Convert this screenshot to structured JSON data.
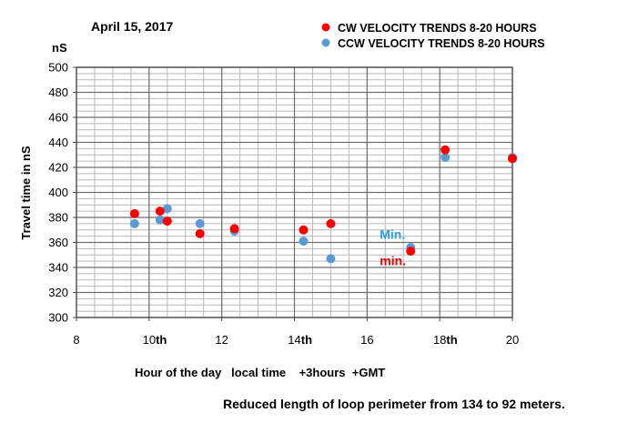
{
  "chart_data": {
    "type": "scatter",
    "date_label": "April 15, 2017",
    "y_unit": "nS",
    "ylabel": "Travel time in nS",
    "xlabel": "Hour of the day   local time    +3hours  +GMT",
    "footnote": "Reduced length of loop perimeter from 134 to 92 meters.",
    "xlim": [
      8,
      20
    ],
    "ylim": [
      300,
      500
    ],
    "x_ticks": [
      8,
      10,
      12,
      14,
      16,
      18,
      20
    ],
    "x_tick_labels": [
      "8",
      "10th",
      "12",
      "14th",
      "16",
      "18th",
      "20"
    ],
    "y_ticks": [
      300,
      320,
      340,
      360,
      380,
      400,
      420,
      440,
      460,
      480,
      500
    ],
    "y_tick_labels": [
      "300",
      "320",
      "340",
      "360",
      "380",
      "400",
      "420",
      "440",
      "460",
      "480",
      "500"
    ],
    "grid": true,
    "legend_position": "top-right",
    "series": [
      {
        "name": "CW VELOCITY TRENDS 8-20 HOURS",
        "color": "#ff0000",
        "points": [
          {
            "x": 9.6,
            "y": 383
          },
          {
            "x": 10.3,
            "y": 385
          },
          {
            "x": 10.5,
            "y": 377
          },
          {
            "x": 11.4,
            "y": 367
          },
          {
            "x": 12.35,
            "y": 371
          },
          {
            "x": 14.25,
            "y": 370
          },
          {
            "x": 15.0,
            "y": 375
          },
          {
            "x": 17.2,
            "y": 353
          },
          {
            "x": 18.15,
            "y": 434
          },
          {
            "x": 20.0,
            "y": 427
          }
        ]
      },
      {
        "name": "CCW VELOCITY TRENDS 8-20 HOURS",
        "color": "#5b9bd5",
        "points": [
          {
            "x": 9.6,
            "y": 375
          },
          {
            "x": 10.3,
            "y": 378
          },
          {
            "x": 10.5,
            "y": 387
          },
          {
            "x": 11.4,
            "y": 375
          },
          {
            "x": 12.35,
            "y": 369
          },
          {
            "x": 14.25,
            "y": 361
          },
          {
            "x": 15.0,
            "y": 347
          },
          {
            "x": 17.2,
            "y": 356
          },
          {
            "x": 18.15,
            "y": 428
          },
          {
            "x": 20.0,
            "y": 428
          }
        ]
      }
    ],
    "annotations": [
      {
        "text": "Min.",
        "x": 17.0,
        "y": 363,
        "color": "#2a9fd6"
      },
      {
        "text": "min.",
        "x": 17.0,
        "y": 342,
        "color": "#e00000"
      }
    ]
  }
}
